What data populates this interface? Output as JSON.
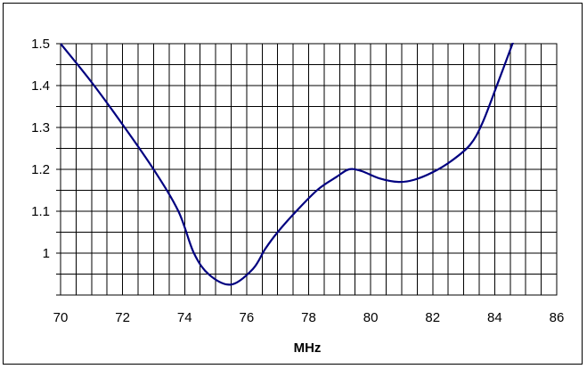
{
  "chart_data": {
    "type": "line",
    "title": "",
    "xlabel": "MHz",
    "ylabel": "",
    "xlim": [
      70,
      86
    ],
    "ylim": [
      0.9,
      1.5
    ],
    "x_ticks": [
      70,
      72,
      74,
      76,
      78,
      80,
      82,
      84,
      86
    ],
    "x_tick_labels": [
      "70",
      "72",
      "74",
      "76",
      "78",
      "80",
      "82",
      "84",
      "86"
    ],
    "y_ticks": [
      1.0,
      1.1,
      1.2,
      1.3,
      1.4,
      1.5
    ],
    "y_tick_labels": [
      "1",
      "1.1",
      "1.2",
      "1.3",
      "1.4",
      "1.5"
    ],
    "grid": true,
    "legend": "none",
    "line_color": "#000080",
    "series": [
      {
        "x": [
          70.0,
          71.0,
          72.0,
          73.0,
          73.8,
          74.3,
          74.8,
          75.5,
          76.2,
          76.6,
          77.0,
          77.6,
          78.3,
          78.9,
          79.3,
          79.7,
          80.3,
          80.9,
          81.4,
          82.0,
          82.6,
          83.2,
          83.6,
          84.1,
          84.6
        ],
        "y": [
          1.5,
          1.408,
          1.307,
          1.2,
          1.1,
          1.0,
          0.948,
          0.925,
          0.962,
          1.01,
          1.05,
          1.1,
          1.152,
          1.182,
          1.2,
          1.196,
          1.178,
          1.17,
          1.175,
          1.193,
          1.22,
          1.258,
          1.31,
          1.406,
          1.505
        ]
      }
    ]
  }
}
